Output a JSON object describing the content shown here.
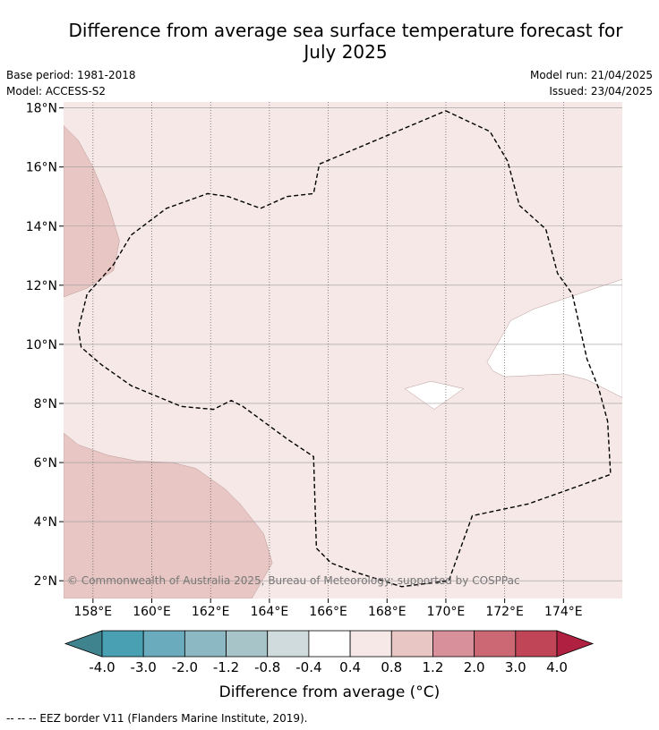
{
  "title_line1": "Difference from average sea surface temperature forecast for",
  "title_line2": "July 2025",
  "base_period": "Base period: 1981-2018",
  "model": "Model: ACCESS-S2",
  "model_run": "Model run: 21/04/2025",
  "issued": "Issued: 23/04/2025",
  "copyright": "© Commonwealth of Australia 2025, Bureau of Meteorology; supported by COSPPac",
  "footnote": "--  --  -- EEZ border V11 (Flanders Marine Institute, 2019).",
  "map": {
    "lon_range": [
      157,
      176
    ],
    "lat_range": [
      1.4,
      18.2
    ],
    "lon_ticks": [
      {
        "value": 158,
        "label": "158°E"
      },
      {
        "value": 160,
        "label": "160°E"
      },
      {
        "value": 162,
        "label": "162°E"
      },
      {
        "value": 164,
        "label": "164°E"
      },
      {
        "value": 166,
        "label": "166°E"
      },
      {
        "value": 168,
        "label": "168°E"
      },
      {
        "value": 170,
        "label": "170°E"
      },
      {
        "value": 172,
        "label": "172°E"
      },
      {
        "value": 174,
        "label": "174°E"
      }
    ],
    "lat_ticks": [
      {
        "value": 2,
        "label": "2°N"
      },
      {
        "value": 4,
        "label": "4°N"
      },
      {
        "value": 6,
        "label": "6°N"
      },
      {
        "value": 8,
        "label": "8°N"
      },
      {
        "value": 10,
        "label": "10°N"
      },
      {
        "value": 12,
        "label": "12°N"
      },
      {
        "value": 14,
        "label": "14°N"
      },
      {
        "value": 16,
        "label": "16°N"
      },
      {
        "value": 18,
        "label": "18°N"
      }
    ],
    "background_band": "0.4 to 0.8",
    "colors": {
      "band_0.4_0.8": "#f5e8e7",
      "band_0.8_1.2": "#e8c6c3",
      "band_-0.4_0.4": "#ffffff"
    },
    "regions": [
      {
        "band": "0.8 to 1.2",
        "points": [
          [
            157,
            17.4
          ],
          [
            157.5,
            16.9
          ],
          [
            158,
            16
          ],
          [
            158.5,
            14.8
          ],
          [
            158.9,
            13.5
          ],
          [
            158.7,
            12.5
          ],
          [
            157.8,
            11.9
          ],
          [
            157,
            11.6
          ]
        ]
      },
      {
        "band": "0.8 to 1.2",
        "points": [
          [
            157,
            7
          ],
          [
            157.5,
            6.6
          ],
          [
            158.5,
            6.25
          ],
          [
            159.5,
            6.05
          ],
          [
            160.7,
            6
          ],
          [
            161.5,
            5.8
          ],
          [
            162.5,
            5.1
          ],
          [
            163,
            4.6
          ],
          [
            163.8,
            3.6
          ],
          [
            164.1,
            2.6
          ],
          [
            163.4,
            1.4
          ],
          [
            157,
            1.4
          ]
        ]
      },
      {
        "band": "-0.4 to 0.4",
        "points": [
          [
            176,
            12.2
          ],
          [
            174.5,
            11.7
          ],
          [
            173,
            11.2
          ],
          [
            172.2,
            10.8
          ],
          [
            171.8,
            10.1
          ],
          [
            171.4,
            9.4
          ],
          [
            171.6,
            9.1
          ],
          [
            172,
            8.9
          ],
          [
            173,
            8.95
          ],
          [
            174,
            9
          ],
          [
            174.8,
            8.8
          ],
          [
            176,
            8.2
          ]
        ]
      },
      {
        "band": "-0.4 to 0.4",
        "points": [
          [
            168.6,
            8.5
          ],
          [
            169.5,
            8.75
          ],
          [
            170.6,
            8.5
          ],
          [
            169.6,
            7.8
          ]
        ]
      }
    ],
    "eez_border": [
      [
        170,
        17.9
      ],
      [
        171.5,
        17.2
      ],
      [
        172.1,
        16.2
      ],
      [
        172.5,
        14.7
      ],
      [
        173.4,
        13.9
      ],
      [
        173.8,
        12.4
      ],
      [
        174.3,
        11.7
      ],
      [
        174.8,
        9.5
      ],
      [
        175.2,
        8.5
      ],
      [
        175.5,
        7.4
      ],
      [
        175.6,
        5.6
      ],
      [
        174.5,
        5.2
      ],
      [
        172.8,
        4.6
      ],
      [
        170.9,
        4.2
      ],
      [
        170.1,
        2
      ],
      [
        168.5,
        1.8
      ],
      [
        166.9,
        2.3
      ],
      [
        166.1,
        2.6
      ],
      [
        165.6,
        3.1
      ],
      [
        165.5,
        6.2
      ],
      [
        164.6,
        6.8
      ],
      [
        163.1,
        7.9
      ],
      [
        162.7,
        8.1
      ],
      [
        162.1,
        7.8
      ],
      [
        161,
        7.9
      ],
      [
        159.3,
        8.6
      ],
      [
        158.3,
        9.3
      ],
      [
        157.6,
        9.9
      ],
      [
        157.5,
        10.5
      ],
      [
        157.8,
        11.7
      ],
      [
        158.7,
        12.7
      ],
      [
        159.3,
        13.7
      ],
      [
        160.5,
        14.6
      ],
      [
        161.9,
        15.1
      ],
      [
        162.6,
        15
      ],
      [
        163.7,
        14.6
      ],
      [
        164.6,
        15
      ],
      [
        165.5,
        15.1
      ],
      [
        165.7,
        16.1
      ],
      [
        170,
        17.9
      ]
    ]
  },
  "colorbar": {
    "label": "Difference from average (°C)",
    "tick_labels": [
      "-4.0",
      "-3.0",
      "-2.0",
      "-1.2",
      "-0.8",
      "-0.4",
      "0.4",
      "0.8",
      "1.2",
      "2.0",
      "3.0",
      "4.0"
    ],
    "colors": [
      "#3e838e",
      "#4aa0b3",
      "#6aacbd",
      "#8cb8c3",
      "#a7c5c9",
      "#cfdbdc",
      "#ffffff",
      "#f5e8e7",
      "#e8c6c3",
      "#d8909a",
      "#cb6874",
      "#c04657",
      "#b02040"
    ]
  }
}
